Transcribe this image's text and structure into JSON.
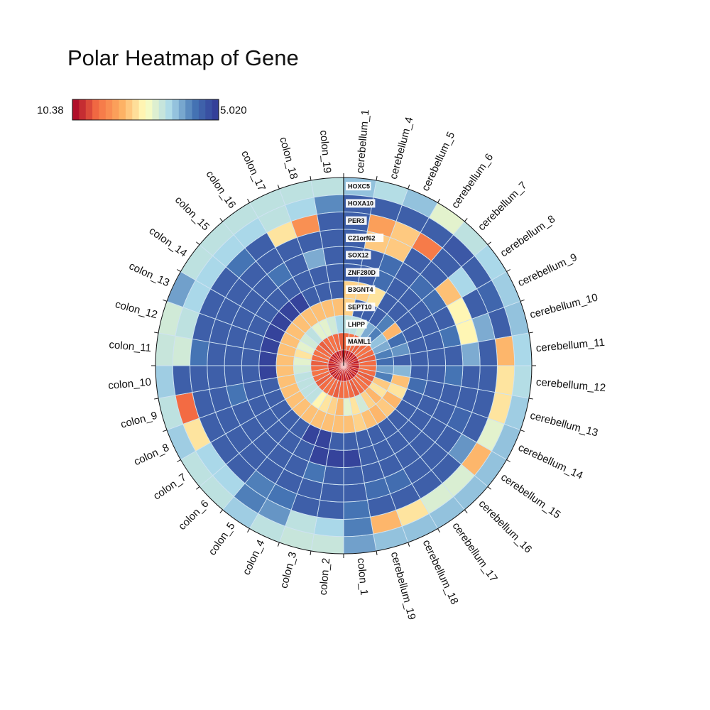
{
  "chart_data": {
    "type": "heatmap",
    "subtype": "polar",
    "title": "Polar Heatmap of Gene",
    "colorbar": {
      "min_label": "10.38",
      "max_label": "5.020",
      "min": 5.02,
      "max": 10.38,
      "colors_from_high_to_low": [
        "#a50026",
        "#f46d43",
        "#fdae61",
        "#ffffbf",
        "#abd9e9",
        "#4575b4",
        "#313695"
      ]
    },
    "samples": [
      "cerebellum_1",
      "cerebellum_4",
      "cerebellum_5",
      "cerebellum_6",
      "cerebellum_7",
      "cerebellum_8",
      "cerebellum_9",
      "cerebellum_10",
      "cerebellum_11",
      "cerebellum_12",
      "cerebellum_13",
      "cerebellum_14",
      "cerebellum_15",
      "cerebellum_16",
      "cerebellum_17",
      "cerebellum_18",
      "cerebellum_19",
      "colon_1",
      "colon_2",
      "colon_3",
      "colon_4",
      "colon_5",
      "colon_6",
      "colon_7",
      "colon_8",
      "colon_9",
      "colon_10",
      "colon_11",
      "colon_12",
      "colon_13",
      "colon_14",
      "colon_15",
      "colon_16",
      "colon_17",
      "colon_18",
      "colon_19"
    ],
    "genes_outer_to_inner": [
      "HOXC5",
      "HOXA10",
      "PER3",
      "C21orf62",
      "SOX12",
      "ZNF280D",
      "B3GNT4",
      "SEPT10",
      "LHPP",
      "MAML1"
    ],
    "values": [
      [
        6.6,
        6.9,
        6.6,
        7.4,
        7.0,
        6.8,
        6.7,
        6.6,
        6.8,
        6.9,
        6.7,
        6.6,
        6.6,
        6.6,
        6.6,
        6.6,
        6.6,
        6.3,
        7.1,
        7.1,
        7.0,
        6.7,
        7.0,
        7.0,
        6.7,
        7.0,
        6.7,
        7.1,
        7.2,
        6.3,
        7.0,
        7.0,
        7.0,
        7.0,
        7.0,
        7.0
      ],
      [
        5.6,
        5.6,
        5.6,
        5.6,
        5.5,
        5.6,
        5.7,
        5.6,
        8.5,
        8.0,
        8.0,
        7.4,
        8.5,
        7.3,
        7.3,
        8.0,
        8.5,
        6.0,
        6.8,
        7.0,
        6.2,
        6.0,
        6.8,
        6.8,
        8.0,
        9.5,
        5.6,
        7.2,
        7.0,
        6.8,
        6.8,
        6.8,
        6.8,
        7.0,
        6.8,
        6.1
      ],
      [
        5.6,
        8.8,
        8.3,
        9.3,
        5.6,
        6.8,
        5.6,
        6.4,
        5.6,
        5.6,
        5.6,
        5.6,
        6.2,
        5.6,
        5.6,
        5.6,
        5.6,
        5.9,
        5.6,
        5.6,
        5.9,
        6.0,
        5.6,
        5.6,
        5.6,
        5.6,
        5.6,
        5.9,
        5.6,
        5.6,
        5.6,
        5.9,
        5.6,
        8.0,
        9.0,
        5.6
      ],
      [
        5.6,
        8.3,
        8.3,
        5.6,
        5.6,
        8.4,
        7.8,
        7.8,
        6.4,
        5.6,
        5.6,
        5.7,
        5.6,
        5.6,
        5.6,
        5.8,
        5.8,
        5.6,
        5.6,
        5.6,
        5.6,
        5.6,
        5.6,
        5.6,
        5.6,
        5.6,
        5.6,
        5.6,
        5.6,
        5.6,
        5.6,
        5.6,
        5.6,
        5.6,
        5.6,
        5.6
      ],
      [
        5.6,
        5.6,
        5.8,
        5.6,
        5.8,
        5.8,
        5.6,
        5.9,
        5.6,
        5.9,
        5.6,
        5.6,
        5.6,
        5.6,
        5.6,
        5.6,
        5.6,
        5.6,
        5.6,
        5.9,
        5.6,
        5.6,
        5.6,
        5.6,
        5.6,
        5.9,
        5.6,
        5.6,
        5.6,
        5.6,
        5.6,
        5.6,
        5.9,
        5.6,
        6.4,
        5.6
      ],
      [
        5.6,
        5.6,
        5.8,
        5.6,
        5.6,
        5.6,
        5.6,
        5.6,
        5.6,
        5.6,
        5.6,
        5.6,
        5.6,
        5.6,
        5.6,
        5.6,
        5.6,
        5.2,
        5.2,
        5.2,
        5.6,
        5.6,
        5.6,
        5.6,
        5.6,
        5.6,
        5.6,
        5.6,
        5.6,
        5.6,
        5.6,
        5.6,
        5.6,
        5.6,
        5.6,
        5.6
      ],
      [
        8.2,
        8.2,
        8.0,
        5.6,
        5.6,
        5.6,
        5.6,
        5.6,
        5.6,
        5.6,
        5.8,
        5.6,
        5.6,
        5.6,
        5.6,
        5.6,
        5.6,
        5.6,
        5.6,
        5.2,
        5.2,
        5.6,
        5.6,
        5.6,
        5.6,
        5.6,
        5.2,
        5.2,
        5.2,
        5.2,
        5.2,
        5.2,
        5.2,
        5.6,
        5.6,
        5.6
      ],
      [
        8.2,
        5.6,
        5.6,
        5.6,
        6.0,
        8.5,
        5.8,
        6.2,
        5.6,
        6.5,
        8.4,
        8.0,
        8.5,
        8.3,
        8.5,
        8.4,
        8.2,
        8.4,
        8.4,
        8.4,
        8.4,
        8.4,
        8.4,
        8.4,
        8.4,
        8.4,
        8.4,
        8.4,
        8.4,
        8.4,
        8.4,
        8.4,
        8.4,
        8.4,
        8.4,
        8.4
      ],
      [
        7.0,
        7.0,
        7.2,
        6.4,
        6.0,
        6.6,
        6.4,
        6.0,
        5.8,
        6.3,
        6.0,
        8.3,
        8.0,
        8.5,
        8.2,
        7.2,
        8.0,
        7.4,
        8.5,
        8.2,
        8.0,
        7.8,
        7.0,
        7.0,
        7.0,
        7.0,
        7.2,
        7.4,
        8.0,
        7.4,
        7.2,
        7.0,
        7.4,
        7.4,
        7.2,
        6.8
      ],
      [
        9.5,
        9.4,
        9.5,
        9.6,
        9.5,
        9.4,
        9.5,
        9.6,
        9.5,
        9.4,
        9.5,
        9.6,
        9.5,
        9.4,
        9.5,
        9.6,
        9.5,
        9.4,
        9.5,
        9.6,
        9.5,
        9.4,
        9.5,
        9.6,
        9.5,
        9.4,
        9.5,
        9.6,
        9.5,
        9.4,
        9.5,
        9.6,
        9.5,
        9.4,
        9.5,
        9.6
      ]
    ]
  }
}
